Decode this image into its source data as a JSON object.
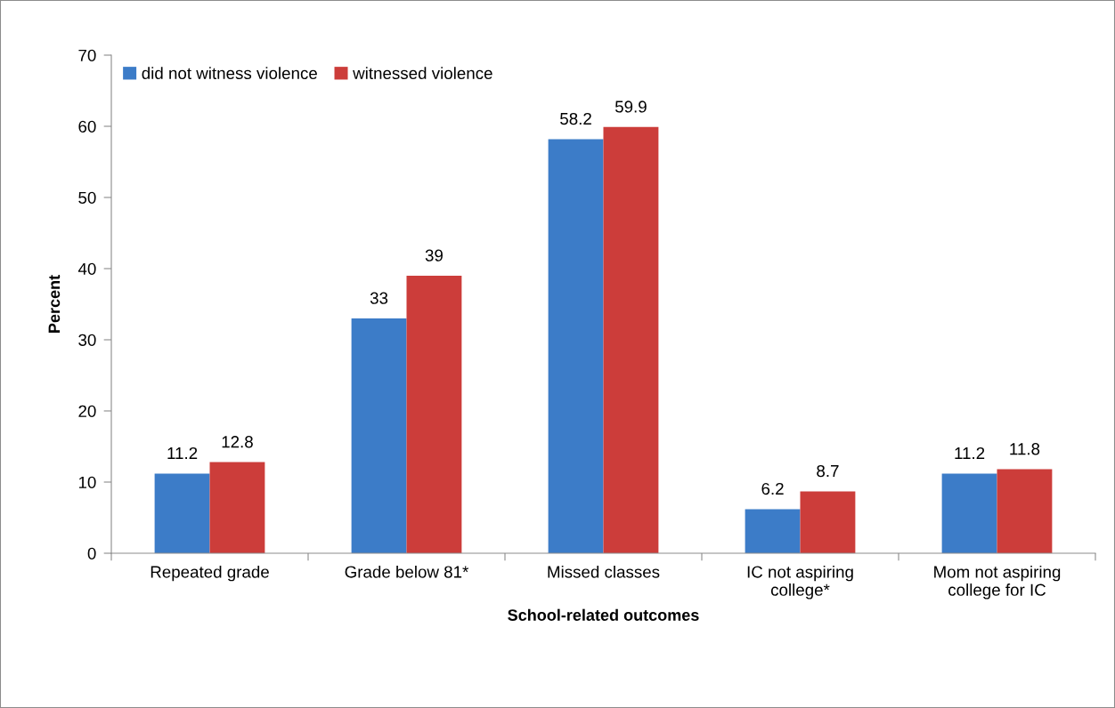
{
  "chart_data": {
    "type": "bar",
    "categories": [
      "Repeated grade",
      "Grade below 81*",
      "Missed classes",
      "IC not aspiring college*",
      "Mom not aspiring college for IC"
    ],
    "series": [
      {
        "name": "did not witness violence",
        "color": "#3c7cc8",
        "values": [
          11.2,
          33,
          58.2,
          6.2,
          11.2
        ]
      },
      {
        "name": "witnessed violence",
        "color": "#cc3d3a",
        "values": [
          12.8,
          39,
          59.9,
          8.7,
          11.8
        ]
      }
    ],
    "xlabel": "School-related outcomes",
    "ylabel": "Percent",
    "ylim": [
      0,
      70
    ],
    "yticks": [
      0,
      10,
      20,
      30,
      40,
      50,
      60,
      70
    ],
    "data_labels": true,
    "grid": false,
    "legend": "top left"
  }
}
